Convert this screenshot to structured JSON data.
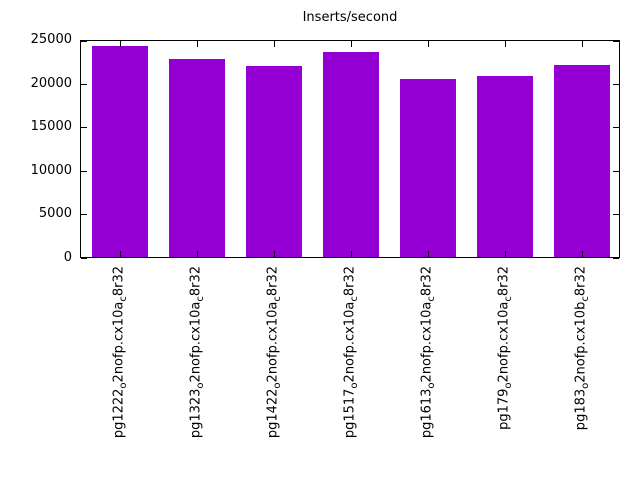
{
  "chart_data": {
    "type": "bar",
    "title": "Inserts/second",
    "categories": [
      "pg1222_o2nofp.cx10a_c8r32",
      "pg1323_o2nofp.cx10a_c8r32",
      "pg1422_o2nofp.cx10a_c8r32",
      "pg1517_o2nofp.cx10a_c8r32",
      "pg1613_o2nofp.cx10a_c8r32",
      "pg179_o2nofp.cx10a_c8r32",
      "pg183_o2nofp.cx10b_c8r32"
    ],
    "values": [
      24200,
      22700,
      21900,
      23500,
      20400,
      20700,
      22000
    ],
    "xlabel": "",
    "ylabel": "",
    "ylim": [
      0,
      25000
    ],
    "yticks": [
      0,
      5000,
      10000,
      15000,
      20000,
      25000
    ],
    "bar_color": "#9400d3",
    "axis_color": "#000000",
    "background_color": "#ffffff",
    "grid": false,
    "legend_position": "none",
    "xtick_rotation_degrees": 90
  }
}
